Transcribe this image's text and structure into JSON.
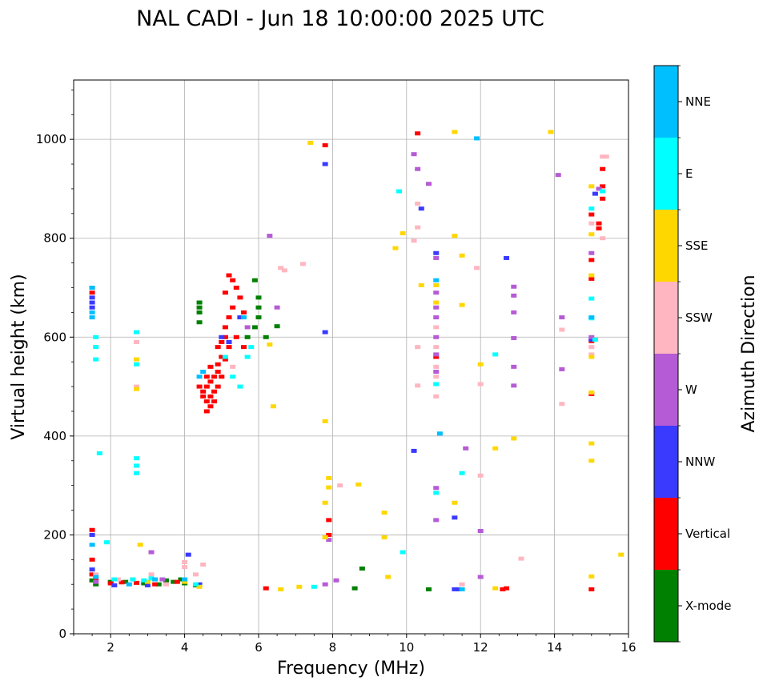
{
  "chart_data": {
    "type": "scatter",
    "title": "NAL CADI - Jun 18 10:00:00 2025 UTC",
    "xlabel": "Frequency (MHz)",
    "ylabel": "Virtual height (km)",
    "xlim": [
      1,
      16
    ],
    "ylim": [
      0,
      1120
    ],
    "xticks": [
      2,
      4,
      6,
      8,
      10,
      12,
      14,
      16
    ],
    "yticks": [
      0,
      200,
      400,
      600,
      800,
      1000
    ],
    "grid": true,
    "colorbar": {
      "label": "Azimuth Direction",
      "placement": "right",
      "categories": [
        {
          "name": "X-mode",
          "color": "#008000"
        },
        {
          "name": "Vertical",
          "color": "#ff0000"
        },
        {
          "name": "NNW",
          "color": "#3a3aff"
        },
        {
          "name": "W",
          "color": "#b65bd6"
        },
        {
          "name": "SSW",
          "color": "#ffb6c1"
        },
        {
          "name": "SSE",
          "color": "#ffd700"
        },
        {
          "name": "E",
          "color": "#00ffff"
        },
        {
          "name": "NNE",
          "color": "#00bfff"
        }
      ]
    },
    "series": [
      {
        "name": "X-mode",
        "points": [
          [
            4.4,
            650
          ],
          [
            4.4,
            660
          ],
          [
            4.4,
            670
          ],
          [
            4.4,
            630
          ],
          [
            6.0,
            680
          ],
          [
            6.0,
            660
          ],
          [
            6.0,
            640
          ],
          [
            5.9,
            620
          ],
          [
            6.5,
            622
          ],
          [
            8.8,
            132
          ],
          [
            8.6,
            92
          ],
          [
            10.6,
            90
          ],
          [
            1.5,
            108
          ],
          [
            1.6,
            100
          ],
          [
            2.0,
            105
          ],
          [
            2.4,
            105
          ],
          [
            2.9,
            102
          ],
          [
            3.3,
            100
          ],
          [
            3.7,
            105
          ],
          [
            4.0,
            102
          ],
          [
            4.3,
            98
          ],
          [
            3.5,
            108
          ],
          [
            3.9,
            110
          ],
          [
            5.9,
            715
          ],
          [
            6.2,
            600
          ],
          [
            5.7,
            600
          ]
        ]
      },
      {
        "name": "Vertical",
        "points": [
          [
            4.6,
            450
          ],
          [
            4.7,
            460
          ],
          [
            4.6,
            470
          ],
          [
            4.7,
            480
          ],
          [
            4.8,
            470
          ],
          [
            4.5,
            490
          ],
          [
            4.6,
            500
          ],
          [
            4.7,
            510
          ],
          [
            4.8,
            490
          ],
          [
            4.9,
            500
          ],
          [
            4.6,
            520
          ],
          [
            4.8,
            520
          ],
          [
            4.9,
            530
          ],
          [
            5.0,
            520
          ],
          [
            4.7,
            540
          ],
          [
            4.9,
            545
          ],
          [
            5.0,
            560
          ],
          [
            5.1,
            555
          ],
          [
            4.9,
            580
          ],
          [
            5.0,
            590
          ],
          [
            5.1,
            600
          ],
          [
            5.2,
            580
          ],
          [
            5.1,
            620
          ],
          [
            5.2,
            640
          ],
          [
            5.3,
            660
          ],
          [
            5.1,
            690
          ],
          [
            5.3,
            715
          ],
          [
            5.4,
            700
          ],
          [
            5.5,
            680
          ],
          [
            5.2,
            725
          ],
          [
            5.6,
            650
          ],
          [
            5.4,
            600
          ],
          [
            5.6,
            580
          ],
          [
            4.5,
            480
          ],
          [
            4.4,
            500
          ],
          [
            1.5,
            700
          ],
          [
            1.5,
            690
          ],
          [
            1.5,
            210
          ],
          [
            1.5,
            150
          ],
          [
            1.5,
            120
          ],
          [
            1.6,
            110
          ],
          [
            2.0,
            102
          ],
          [
            2.3,
            104
          ],
          [
            2.7,
            103
          ],
          [
            3.2,
            100
          ],
          [
            3.8,
            105
          ],
          [
            6.2,
            92
          ],
          [
            7.9,
            230
          ],
          [
            7.9,
            200
          ],
          [
            7.8,
            988
          ],
          [
            10.3,
            1012
          ],
          [
            10.8,
            560
          ],
          [
            12.6,
            90
          ],
          [
            12.7,
            92
          ],
          [
            15.0,
            592
          ],
          [
            15.0,
            718
          ],
          [
            15.0,
            756
          ],
          [
            15.0,
            848
          ],
          [
            15.0,
            485
          ],
          [
            15.0,
            90
          ],
          [
            15.2,
            820
          ],
          [
            15.2,
            830
          ],
          [
            15.3,
            940
          ],
          [
            15.3,
            905
          ],
          [
            15.3,
            880
          ]
        ]
      },
      {
        "name": "NNW",
        "points": [
          [
            1.5,
            680
          ],
          [
            1.5,
            670
          ],
          [
            1.5,
            660
          ],
          [
            1.5,
            200
          ],
          [
            1.5,
            130
          ],
          [
            2.1,
            98
          ],
          [
            3.0,
            98
          ],
          [
            4.1,
            160
          ],
          [
            4.4,
            100
          ],
          [
            5.0,
            600
          ],
          [
            5.2,
            590
          ],
          [
            5.5,
            640
          ],
          [
            10.2,
            370
          ],
          [
            10.4,
            860
          ],
          [
            10.8,
            770
          ],
          [
            11.3,
            90
          ],
          [
            11.3,
            235
          ],
          [
            11.4,
            90
          ],
          [
            12.7,
            760
          ],
          [
            7.8,
            950
          ],
          [
            7.8,
            610
          ],
          [
            15.0,
            595
          ],
          [
            15.1,
            890
          ]
        ]
      },
      {
        "name": "W",
        "points": [
          [
            1.6,
            105
          ],
          [
            3.1,
            165
          ],
          [
            3.4,
            110
          ],
          [
            5.7,
            620
          ],
          [
            6.5,
            660
          ],
          [
            6.3,
            805
          ],
          [
            7.8,
            100
          ],
          [
            7.9,
            190
          ],
          [
            8.1,
            108
          ],
          [
            10.2,
            970
          ],
          [
            10.3,
            940
          ],
          [
            10.6,
            910
          ],
          [
            10.8,
            760
          ],
          [
            10.8,
            690
          ],
          [
            10.8,
            660
          ],
          [
            10.8,
            640
          ],
          [
            10.8,
            600
          ],
          [
            10.8,
            565
          ],
          [
            10.8,
            530
          ],
          [
            10.8,
            295
          ],
          [
            10.8,
            230
          ],
          [
            11.6,
            375
          ],
          [
            12.0,
            208
          ],
          [
            12.0,
            115
          ],
          [
            12.9,
            702
          ],
          [
            12.9,
            684
          ],
          [
            12.9,
            650
          ],
          [
            12.9,
            598
          ],
          [
            12.9,
            540
          ],
          [
            12.9,
            502
          ],
          [
            14.1,
            928
          ],
          [
            14.2,
            640
          ],
          [
            14.2,
            535
          ],
          [
            15.0,
            770
          ],
          [
            15.0,
            600
          ],
          [
            15.2,
            900
          ]
        ]
      },
      {
        "name": "SSW",
        "points": [
          [
            1.6,
            120
          ],
          [
            2.2,
            110
          ],
          [
            2.6,
            110
          ],
          [
            2.7,
            590
          ],
          [
            2.7,
            500
          ],
          [
            3.1,
            120
          ],
          [
            3.5,
            100
          ],
          [
            4.0,
            135
          ],
          [
            4.0,
            145
          ],
          [
            4.3,
            120
          ],
          [
            4.5,
            140
          ],
          [
            5.3,
            540
          ],
          [
            6.6,
            740
          ],
          [
            6.7,
            735
          ],
          [
            7.2,
            748
          ],
          [
            8.2,
            300
          ],
          [
            10.2,
            795
          ],
          [
            10.3,
            580
          ],
          [
            10.3,
            502
          ],
          [
            10.3,
            870
          ],
          [
            10.3,
            822
          ],
          [
            10.8,
            620
          ],
          [
            10.8,
            580
          ],
          [
            10.8,
            540
          ],
          [
            10.8,
            520
          ],
          [
            10.8,
            480
          ],
          [
            12.0,
            505
          ],
          [
            12.0,
            320
          ],
          [
            11.9,
            740
          ],
          [
            13.1,
            152
          ],
          [
            14.2,
            615
          ],
          [
            14.2,
            465
          ],
          [
            15.0,
            565
          ],
          [
            15.0,
            580
          ],
          [
            15.3,
            965
          ],
          [
            15.3,
            800
          ],
          [
            15.0,
            830
          ],
          [
            15.4,
            965
          ],
          [
            11.5,
            100
          ]
        ]
      },
      {
        "name": "SSE",
        "points": [
          [
            2.7,
            555
          ],
          [
            2.7,
            495
          ],
          [
            2.8,
            180
          ],
          [
            3.0,
            105
          ],
          [
            4.0,
            105
          ],
          [
            4.4,
            95
          ],
          [
            6.3,
            585
          ],
          [
            6.4,
            460
          ],
          [
            6.6,
            90
          ],
          [
            7.1,
            95
          ],
          [
            7.4,
            993
          ],
          [
            7.8,
            430
          ],
          [
            7.8,
            265
          ],
          [
            7.9,
            315
          ],
          [
            7.9,
            296
          ],
          [
            8.7,
            302
          ],
          [
            9.4,
            245
          ],
          [
            9.4,
            195
          ],
          [
            9.5,
            115
          ],
          [
            9.7,
            780
          ],
          [
            9.9,
            810
          ],
          [
            10.8,
            705
          ],
          [
            10.8,
            670
          ],
          [
            10.4,
            705
          ],
          [
            11.3,
            805
          ],
          [
            11.3,
            1015
          ],
          [
            11.3,
            265
          ],
          [
            11.5,
            765
          ],
          [
            11.5,
            665
          ],
          [
            12.0,
            545
          ],
          [
            12.4,
            375
          ],
          [
            12.4,
            92
          ],
          [
            12.9,
            395
          ],
          [
            13.9,
            1015
          ],
          [
            15.0,
            905
          ],
          [
            15.0,
            808
          ],
          [
            15.0,
            725
          ],
          [
            15.0,
            560
          ],
          [
            15.0,
            488
          ],
          [
            15.0,
            385
          ],
          [
            15.0,
            350
          ],
          [
            15.0,
            116
          ],
          [
            15.8,
            160
          ],
          [
            7.8,
            195
          ]
        ]
      },
      {
        "name": "E",
        "points": [
          [
            1.6,
            600
          ],
          [
            1.6,
            580
          ],
          [
            1.6,
            555
          ],
          [
            1.7,
            365
          ],
          [
            2.7,
            610
          ],
          [
            2.7,
            545
          ],
          [
            2.7,
            355
          ],
          [
            2.7,
            340
          ],
          [
            2.7,
            325
          ],
          [
            1.9,
            185
          ],
          [
            2.1,
            110
          ],
          [
            2.6,
            110
          ],
          [
            2.9,
            108
          ],
          [
            3.1,
            112
          ],
          [
            4.3,
            100
          ],
          [
            5.1,
            560
          ],
          [
            5.3,
            520
          ],
          [
            5.5,
            500
          ],
          [
            5.7,
            560
          ],
          [
            5.8,
            580
          ],
          [
            7.5,
            95
          ],
          [
            9.8,
            895
          ],
          [
            9.9,
            165
          ],
          [
            10.8,
            505
          ],
          [
            10.8,
            285
          ],
          [
            11.5,
            325
          ],
          [
            12.4,
            565
          ],
          [
            15.0,
            860
          ],
          [
            15.0,
            678
          ],
          [
            15.0,
            638
          ],
          [
            15.1,
            595
          ],
          [
            15.3,
            895
          ]
        ]
      },
      {
        "name": "NNE",
        "points": [
          [
            1.5,
            700
          ],
          [
            1.5,
            650
          ],
          [
            1.5,
            640
          ],
          [
            1.5,
            180
          ],
          [
            1.6,
            115
          ],
          [
            2.5,
            100
          ],
          [
            3.2,
            110
          ],
          [
            4.0,
            110
          ],
          [
            4.5,
            530
          ],
          [
            4.4,
            520
          ],
          [
            5.6,
            640
          ],
          [
            10.8,
            715
          ],
          [
            10.9,
            405
          ],
          [
            11.5,
            90
          ],
          [
            11.9,
            1002
          ],
          [
            15.0,
            640
          ]
        ]
      }
    ]
  }
}
